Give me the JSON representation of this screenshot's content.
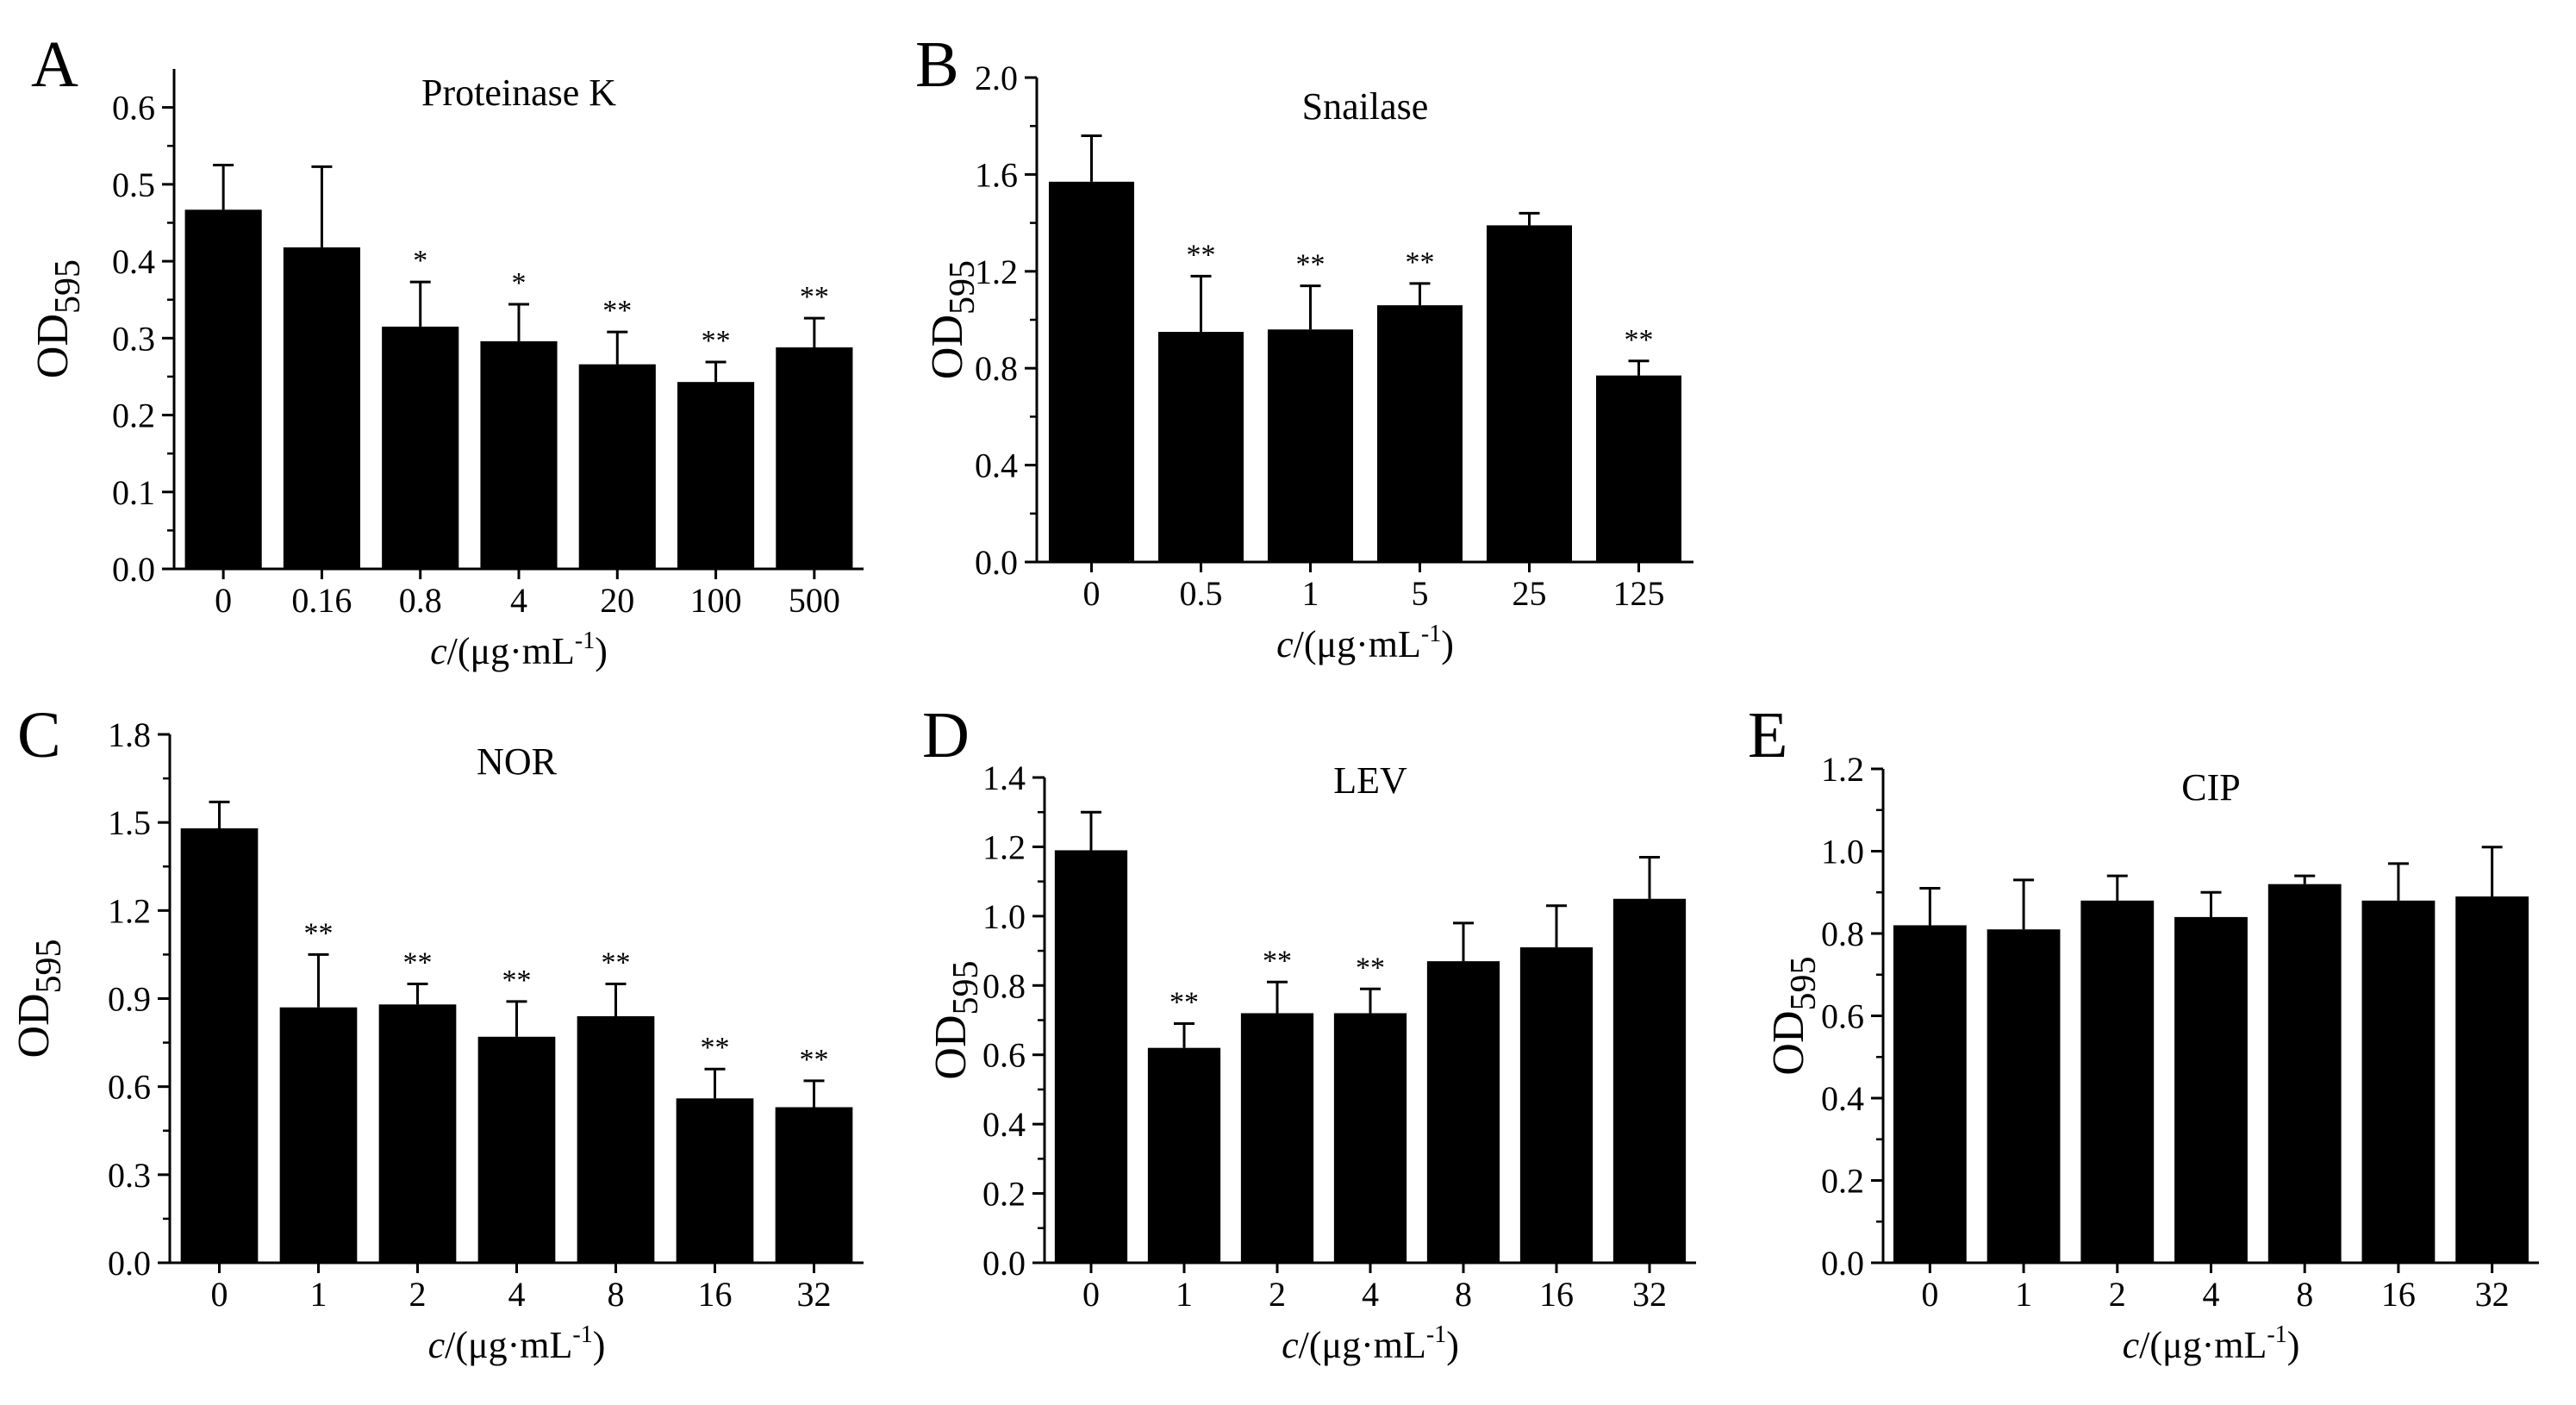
{
  "x_label": {
    "var": "c",
    "unit": "/(μg·mL",
    "exp": "-1",
    "close": ")"
  },
  "y_label": {
    "main": "OD",
    "sub": "595"
  },
  "chart_data": [
    {
      "panel": "A",
      "type": "bar",
      "title": "Proteinase K",
      "categories": [
        "0",
        "0.16",
        "0.8",
        "4",
        "20",
        "100",
        "500"
      ],
      "values": [
        0.467,
        0.418,
        0.315,
        0.296,
        0.266,
        0.243,
        0.288
      ],
      "errors": [
        0.058,
        0.105,
        0.058,
        0.048,
        0.042,
        0.026,
        0.038
      ],
      "significance": [
        "",
        "",
        "*",
        "*",
        "**",
        "**",
        "**"
      ],
      "ylim": [
        0,
        0.65
      ],
      "yticks": [
        0.0,
        0.1,
        0.2,
        0.3,
        0.4,
        0.5,
        0.6
      ],
      "ytick_labels": [
        "0.0",
        "0.1",
        "0.2",
        "0.3",
        "0.4",
        "0.5",
        "0.6"
      ],
      "xlabel": "c/(μg·mL-1)",
      "ylabel": "OD595"
    },
    {
      "panel": "B",
      "type": "bar",
      "title": "Snailase",
      "categories": [
        "0",
        "0.5",
        "1",
        "5",
        "25",
        "125"
      ],
      "values": [
        1.57,
        0.95,
        0.96,
        1.06,
        1.39,
        0.77
      ],
      "errors": [
        0.19,
        0.23,
        0.18,
        0.09,
        0.05,
        0.06
      ],
      "significance": [
        "",
        "**",
        "**",
        "**",
        "",
        "**"
      ],
      "ylim": [
        0,
        2.0
      ],
      "yticks": [
        0.0,
        0.4,
        0.8,
        1.2,
        1.6,
        2.0
      ],
      "ytick_labels": [
        "0.0",
        "0.4",
        "0.8",
        "1.2",
        "1.6",
        "2.0"
      ],
      "xlabel": "c/(μg·mL-1)",
      "ylabel": "OD595"
    },
    {
      "panel": "C",
      "type": "bar",
      "title": "NOR",
      "categories": [
        "0",
        "1",
        "2",
        "4",
        "8",
        "16",
        "32"
      ],
      "values": [
        1.48,
        0.87,
        0.88,
        0.77,
        0.84,
        0.56,
        0.53
      ],
      "errors": [
        0.09,
        0.18,
        0.07,
        0.12,
        0.11,
        0.1,
        0.09
      ],
      "significance": [
        "",
        "**",
        "**",
        "**",
        "**",
        "**",
        "**"
      ],
      "ylim": [
        0,
        1.8
      ],
      "yticks": [
        0.0,
        0.3,
        0.6,
        0.9,
        1.2,
        1.5,
        1.8
      ],
      "ytick_labels": [
        "0.0",
        "0.3",
        "0.6",
        "0.9",
        "1.2",
        "1.5",
        "1.8"
      ],
      "xlabel": "c/(μg·mL-1)",
      "ylabel": "OD595"
    },
    {
      "panel": "D",
      "type": "bar",
      "title": "LEV",
      "categories": [
        "0",
        "1",
        "2",
        "4",
        "8",
        "16",
        "32"
      ],
      "values": [
        1.19,
        0.62,
        0.72,
        0.72,
        0.87,
        0.91,
        1.05
      ],
      "errors": [
        0.11,
        0.07,
        0.09,
        0.07,
        0.11,
        0.12,
        0.12
      ],
      "significance": [
        "",
        "**",
        "**",
        "**",
        "",
        "",
        ""
      ],
      "ylim": [
        0,
        1.4
      ],
      "yticks": [
        0.0,
        0.2,
        0.4,
        0.6,
        0.8,
        1.0,
        1.2,
        1.4
      ],
      "ytick_labels": [
        "0.0",
        "0.2",
        "0.4",
        "0.6",
        "0.8",
        "1.0",
        "1.2",
        "1.4"
      ],
      "xlabel": "c/(μg·mL-1)",
      "ylabel": "OD595"
    },
    {
      "panel": "E",
      "type": "bar",
      "title": "CIP",
      "categories": [
        "0",
        "1",
        "2",
        "4",
        "8",
        "16",
        "32"
      ],
      "values": [
        0.82,
        0.81,
        0.88,
        0.84,
        0.92,
        0.88,
        0.89
      ],
      "errors": [
        0.09,
        0.12,
        0.06,
        0.06,
        0.02,
        0.09,
        0.12
      ],
      "significance": [
        "",
        "",
        "",
        "",
        "",
        "",
        ""
      ],
      "ylim": [
        0,
        1.2
      ],
      "yticks": [
        0.0,
        0.2,
        0.4,
        0.6,
        0.8,
        1.0,
        1.2
      ],
      "ytick_labels": [
        "0.0",
        "0.2",
        "0.4",
        "0.6",
        "0.8",
        "1.0",
        "1.2"
      ],
      "xlabel": "c/(μg·mL-1)",
      "ylabel": "OD595"
    }
  ]
}
